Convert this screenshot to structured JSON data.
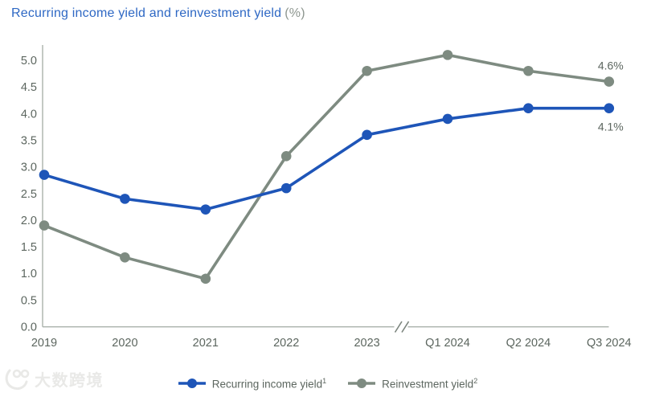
{
  "page": {
    "title": {
      "main": "Recurring income yield and reinvestment yield",
      "unit_suffix": "(%)"
    }
  },
  "watermark": {
    "text": "大数跨境"
  },
  "legend": {
    "items": [
      {
        "label": "Recurring income yield",
        "superscript": "1",
        "color": "#1e55b8"
      },
      {
        "label": "Reinvestment yield",
        "superscript": "2",
        "color": "#7e8b81"
      }
    ]
  },
  "axes": {
    "y_ticks": [
      "0.0",
      "0.5",
      "1.0",
      "1.5",
      "2.0",
      "2.5",
      "3.0",
      "3.5",
      "4.0",
      "4.5",
      "5.0"
    ],
    "x_labels": [
      "2019",
      "2020",
      "2021",
      "2022",
      "2023",
      "Q1 2024",
      "Q2 2024",
      "Q3 2024"
    ],
    "axis_break": {
      "symbol": "//",
      "between": [
        "2023",
        "Q1 2024"
      ]
    }
  },
  "chart_data": {
    "type": "line",
    "title": "Recurring income yield and reinvestment yield (%)",
    "categories": [
      "2019",
      "2020",
      "2021",
      "2022",
      "2023",
      "Q1 2024",
      "Q2 2024",
      "Q3 2024"
    ],
    "series": [
      {
        "name": "Recurring income yield¹",
        "color": "#1e55b8",
        "values": [
          2.85,
          2.4,
          2.2,
          2.6,
          3.6,
          3.9,
          4.1,
          4.1
        ],
        "end_label": "4.1%"
      },
      {
        "name": "Reinvestment yield²",
        "color": "#7e8b81",
        "values": [
          1.9,
          1.3,
          0.9,
          3.2,
          4.8,
          5.1,
          4.8,
          4.6
        ],
        "end_label": "4.6%"
      }
    ],
    "ylim": [
      0,
      5
    ],
    "ytick_step": 0.5,
    "grid": false,
    "legend_position": "bottom",
    "axis_break_after_index": 4
  },
  "colors": {
    "title_blue": "#2e68c4",
    "title_gray": "#8d968f",
    "series1_blue": "#1e55b8",
    "series2_gray": "#7e8b81",
    "axis_line": "#aab2ab",
    "break_mark": "#7b847d",
    "tick_text": "#5c665f",
    "annotation_text": "#5c665f"
  }
}
